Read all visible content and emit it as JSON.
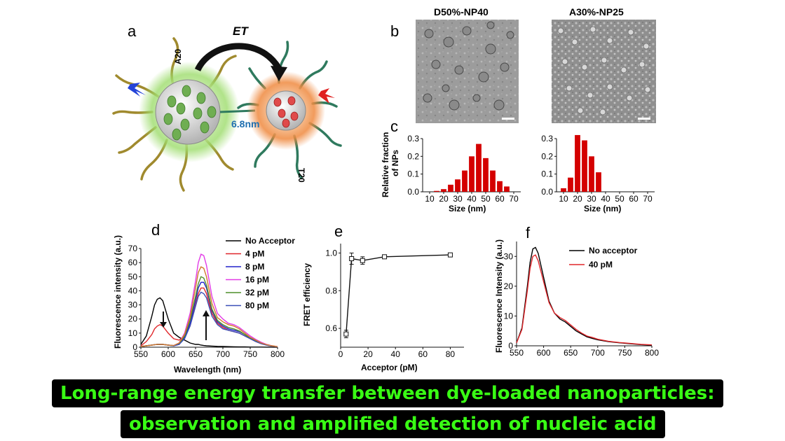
{
  "panel_a": {
    "letter": "a",
    "et_label": "ET",
    "a20_label": "A20",
    "t20_label": "T20",
    "distance_label": "6.8nm"
  },
  "panel_b": {
    "letter": "b",
    "left_title": "D50%-NP40",
    "right_title": "A30%-NP25"
  },
  "panel_c": {
    "letter": "c",
    "ylabel_line1": "Relative fraction",
    "ylabel_line2": "of NPs",
    "xlabel": "Size (nm)"
  },
  "panel_d": {
    "letter": "d",
    "ylabel": "Fluorescence intensity (a.u.)",
    "xlabel": "Wavelength (nm)"
  },
  "panel_e": {
    "letter": "e",
    "ylabel": "FRET efficiency",
    "xlabel": "Acceptor (pM)"
  },
  "panel_f": {
    "letter": "f",
    "ylabel": "Fluorescence Intensity (a.u.)"
  },
  "caption": {
    "line1": "Long-range energy transfer between dye-loaded nanoparticles:",
    "line2": "observation and amplified detection of nucleic acid"
  },
  "colors": {
    "bar": "#d40000",
    "acceptor_glow": "#f08a3c",
    "donor_glow": "#8bd35a",
    "strand_gold": "#a08a2e",
    "strand_teal": "#2f7a5e",
    "caption_bg": "#000000",
    "caption_text": "#39ff14"
  },
  "chart_data": [
    {
      "id": "hist-left",
      "type": "bar",
      "title": "",
      "xlabel": "Size (nm)",
      "ylabel": "Relative fraction of NPs",
      "xlim": [
        5,
        75
      ],
      "ylim": [
        0,
        0.3
      ],
      "xticks": [
        10,
        20,
        30,
        40,
        50,
        60,
        70
      ],
      "yticks": [
        0.0,
        0.1,
        0.2,
        0.3
      ],
      "x": [
        15,
        20,
        25,
        30,
        35,
        40,
        45,
        50,
        55,
        60,
        65
      ],
      "values": [
        0.005,
        0.015,
        0.04,
        0.07,
        0.12,
        0.2,
        0.27,
        0.19,
        0.12,
        0.06,
        0.03
      ]
    },
    {
      "id": "hist-right",
      "type": "bar",
      "title": "",
      "xlabel": "Size (nm)",
      "ylabel": "",
      "xlim": [
        5,
        75
      ],
      "ylim": [
        0,
        0.3
      ],
      "xticks": [
        10,
        20,
        30,
        40,
        50,
        60,
        70
      ],
      "yticks": [
        0.0,
        0.1,
        0.2,
        0.3
      ],
      "x": [
        10,
        15,
        20,
        25,
        30,
        35
      ],
      "values": [
        0.02,
        0.08,
        0.32,
        0.29,
        0.2,
        0.11
      ]
    },
    {
      "id": "spectra-d",
      "type": "line",
      "xlabel": "Wavelength (nm)",
      "ylabel": "Fluorescence intensity (a.u.)",
      "xlim": [
        550,
        800
      ],
      "ylim": [
        0,
        70
      ],
      "xticks": [
        550,
        600,
        650,
        700,
        750,
        800
      ],
      "yticks": [
        0,
        10,
        20,
        30,
        40,
        50,
        60,
        70
      ],
      "x": [
        550,
        560,
        570,
        575,
        580,
        585,
        590,
        600,
        610,
        620,
        630,
        640,
        650,
        655,
        660,
        665,
        670,
        680,
        690,
        700,
        710,
        720,
        730,
        740,
        750,
        760,
        770,
        780,
        790,
        800
      ],
      "series": [
        {
          "name": "No Acceptor",
          "color": "#000000",
          "values": [
            2,
            8,
            22,
            30,
            34,
            35,
            33,
            20,
            10,
            7,
            5,
            3,
            2,
            2,
            1.5,
            1.2,
            1,
            0.8,
            0.6,
            0.5,
            0.4,
            0.3,
            0.2,
            0.2,
            0.1,
            0.1,
            0.1,
            0.05,
            0.05,
            0
          ]
        },
        {
          "name": "4 pM",
          "color": "#e0262a",
          "values": [
            1,
            4,
            9,
            13,
            15,
            16,
            15,
            10,
            6,
            5,
            8,
            15,
            30,
            38,
            42,
            42,
            38,
            24,
            17,
            14,
            12,
            11,
            10,
            8,
            6,
            4,
            2.5,
            1.5,
            0.8,
            0.3
          ]
        },
        {
          "name": "8 pM",
          "color": "#2222cc",
          "values": [
            0.5,
            1,
            1.5,
            1.8,
            2,
            2,
            2,
            1.5,
            1,
            2,
            7,
            17,
            33,
            42,
            46,
            46,
            42,
            26,
            18,
            15,
            13,
            12,
            11,
            9,
            6.5,
            4.5,
            2.8,
            1.6,
            0.9,
            0.3
          ]
        },
        {
          "name": "16 pM",
          "color": "#e23be6",
          "values": [
            0.5,
            1,
            1.5,
            1.8,
            2,
            2,
            2,
            1.5,
            1.2,
            3,
            10,
            24,
            47,
            60,
            66,
            65,
            58,
            36,
            24,
            20,
            17,
            16,
            14,
            11,
            8,
            5.5,
            3.5,
            2,
            1,
            0.4
          ]
        },
        {
          "name": "32 pM",
          "color": "#4f8f2a",
          "values": [
            0.5,
            1,
            1.5,
            1.8,
            2,
            2,
            2,
            1.5,
            1.1,
            2.5,
            8,
            19,
            36,
            45,
            50,
            49,
            44,
            27,
            19,
            16,
            14,
            13,
            11.5,
            9,
            6.5,
            4.5,
            2.8,
            1.6,
            0.9,
            0.3
          ]
        },
        {
          "name": "80 pM",
          "color": "#3a4fb8",
          "values": [
            0.5,
            1,
            1.5,
            1.8,
            2,
            2,
            2,
            1.5,
            1,
            2,
            6,
            15,
            29,
            36,
            39,
            38,
            35,
            22,
            16,
            13,
            12,
            11,
            10,
            8,
            6,
            4,
            2.5,
            1.4,
            0.8,
            0.3
          ]
        },
        {
          "name": "",
          "color": "#d07a2a",
          "values": [
            0.5,
            1,
            1.5,
            1.8,
            2,
            2,
            2,
            1.5,
            1.2,
            3,
            9,
            21,
            42,
            53,
            57,
            56,
            50,
            31,
            21,
            18,
            16,
            15,
            13,
            10,
            7,
            5,
            3,
            1.8,
            1,
            0.4
          ]
        }
      ]
    },
    {
      "id": "fret-e",
      "type": "scatter",
      "xlabel": "Acceptor (pM)",
      "ylabel": "FRET efficiency",
      "xlim": [
        0,
        90
      ],
      "ylim": [
        0.5,
        1.05
      ],
      "xticks": [
        0,
        20,
        40,
        60,
        80
      ],
      "yticks": [
        0.6,
        0.8,
        1.0
      ],
      "x": [
        4,
        8,
        16,
        32,
        80
      ],
      "values": [
        0.57,
        0.97,
        0.96,
        0.98,
        0.99
      ],
      "errors": [
        0.02,
        0.03,
        0.02,
        0.01,
        0.01
      ]
    },
    {
      "id": "spectra-f",
      "type": "line",
      "xlabel": "",
      "ylabel": "Fluorescence Intensity (a.u.)",
      "xlim": [
        550,
        800
      ],
      "ylim": [
        0,
        35
      ],
      "xticks": [
        550,
        600,
        650,
        700,
        750,
        800
      ],
      "yticks": [
        0,
        10,
        20,
        30
      ],
      "x": [
        550,
        560,
        570,
        575,
        580,
        585,
        590,
        600,
        610,
        620,
        630,
        640,
        650,
        660,
        670,
        680,
        690,
        700,
        720,
        740,
        760,
        780,
        800
      ],
      "series": [
        {
          "name": "No acceptor",
          "color": "#000000",
          "values": [
            1,
            6,
            20,
            28,
            32.5,
            33,
            31,
            23,
            15,
            11,
            9,
            8,
            6.5,
            5,
            4,
            3,
            2.5,
            2,
            1.4,
            1,
            0.7,
            0.4,
            0.2
          ]
        },
        {
          "name": "40 pM",
          "color": "#e0262a",
          "values": [
            1,
            5.5,
            18.5,
            26,
            30,
            30.5,
            28.5,
            21.5,
            14.5,
            11,
            9.5,
            8.5,
            7,
            5.5,
            4.3,
            3.3,
            2.8,
            2.2,
            1.5,
            1.1,
            0.8,
            0.5,
            0.3
          ]
        }
      ]
    }
  ]
}
